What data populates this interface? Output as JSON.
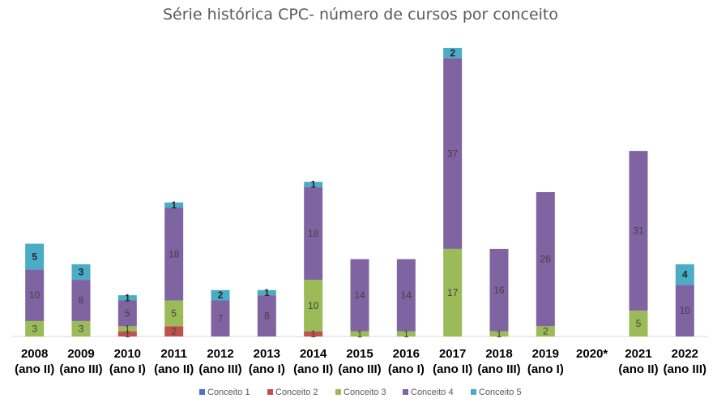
{
  "chart_data": {
    "type": "bar",
    "stacked": true,
    "title": "Série histórica CPC- número de cursos por conceito",
    "categories": [
      [
        "2008",
        "(ano II)"
      ],
      [
        "2009",
        "(ano III)"
      ],
      [
        "2010",
        "(ano I)"
      ],
      [
        "2011",
        "(ano II)"
      ],
      [
        "2012",
        "(ano III)"
      ],
      [
        "2013",
        "(ano I)"
      ],
      [
        "2014",
        "(ano II)"
      ],
      [
        "2015",
        "(ano III)"
      ],
      [
        "2016",
        "(ano I)"
      ],
      [
        "2017",
        "(ano II)"
      ],
      [
        "2018",
        "(ano III)"
      ],
      [
        "2019",
        "(ano I)"
      ],
      [
        "2020*",
        ""
      ],
      [
        "2021",
        "(ano II)"
      ],
      [
        "2022",
        "(ano III)"
      ]
    ],
    "series": [
      {
        "name": "Conceito 1",
        "color": "#4472C4",
        "values": [
          0,
          0,
          0,
          0,
          0,
          0,
          0,
          0,
          0,
          0,
          0,
          0,
          0,
          0,
          0
        ]
      },
      {
        "name": "Conceito 2",
        "color": "#C0504D",
        "values": [
          0,
          0,
          1,
          2,
          0,
          0,
          1,
          0,
          0,
          0,
          0,
          0,
          0,
          0,
          0
        ]
      },
      {
        "name": "Conceito 3",
        "color": "#9BBB59",
        "values": [
          3,
          3,
          1,
          5,
          0,
          0,
          10,
          1,
          1,
          17,
          1,
          2,
          0,
          5,
          0
        ]
      },
      {
        "name": "Conceito 4",
        "color": "#8064A2",
        "values": [
          10,
          8,
          5,
          18,
          7,
          8,
          18,
          14,
          14,
          37,
          16,
          26,
          0,
          31,
          10
        ]
      },
      {
        "name": "Conceito 5",
        "color": "#4BACC6",
        "values": [
          5,
          3,
          1,
          1,
          2,
          1,
          1,
          0,
          0,
          2,
          0,
          0,
          0,
          0,
          4
        ]
      }
    ],
    "ylim": [
      0,
      56
    ],
    "grid": false,
    "legend_position": "bottom"
  }
}
